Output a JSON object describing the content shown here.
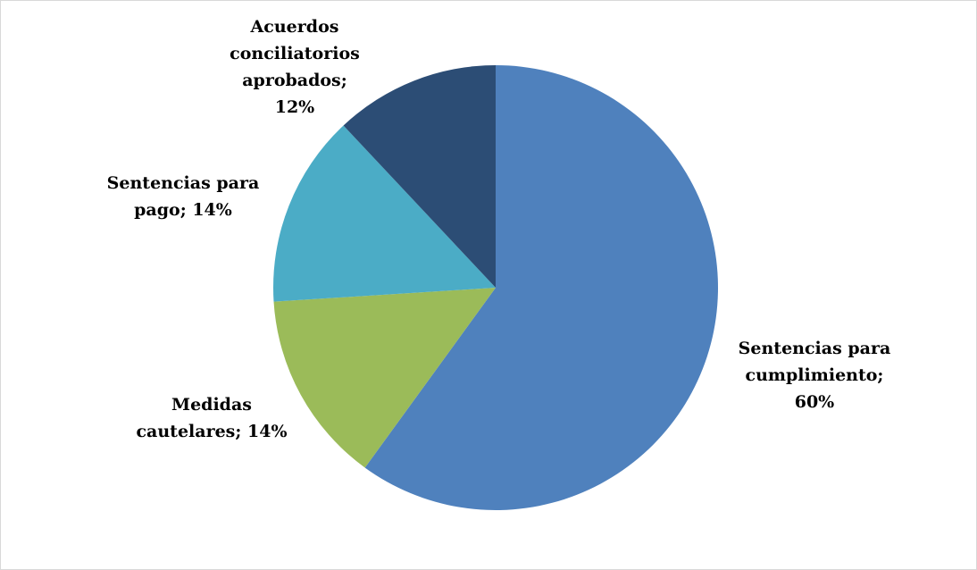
{
  "chart_data": {
    "type": "pie",
    "values": [
      60,
      14,
      14,
      12
    ],
    "value_labels": [
      "Sentencias para\ncumplimiento;\n60%",
      "Medidas\ncautelares; 14%",
      "Sentencias para\npago; 14%",
      "Acuerdos\nconciliatorios\naprobados;\n12%"
    ],
    "colors": [
      "#4f81bd",
      "#9bbb59",
      "#4bacc6",
      "#2c4d75"
    ]
  }
}
